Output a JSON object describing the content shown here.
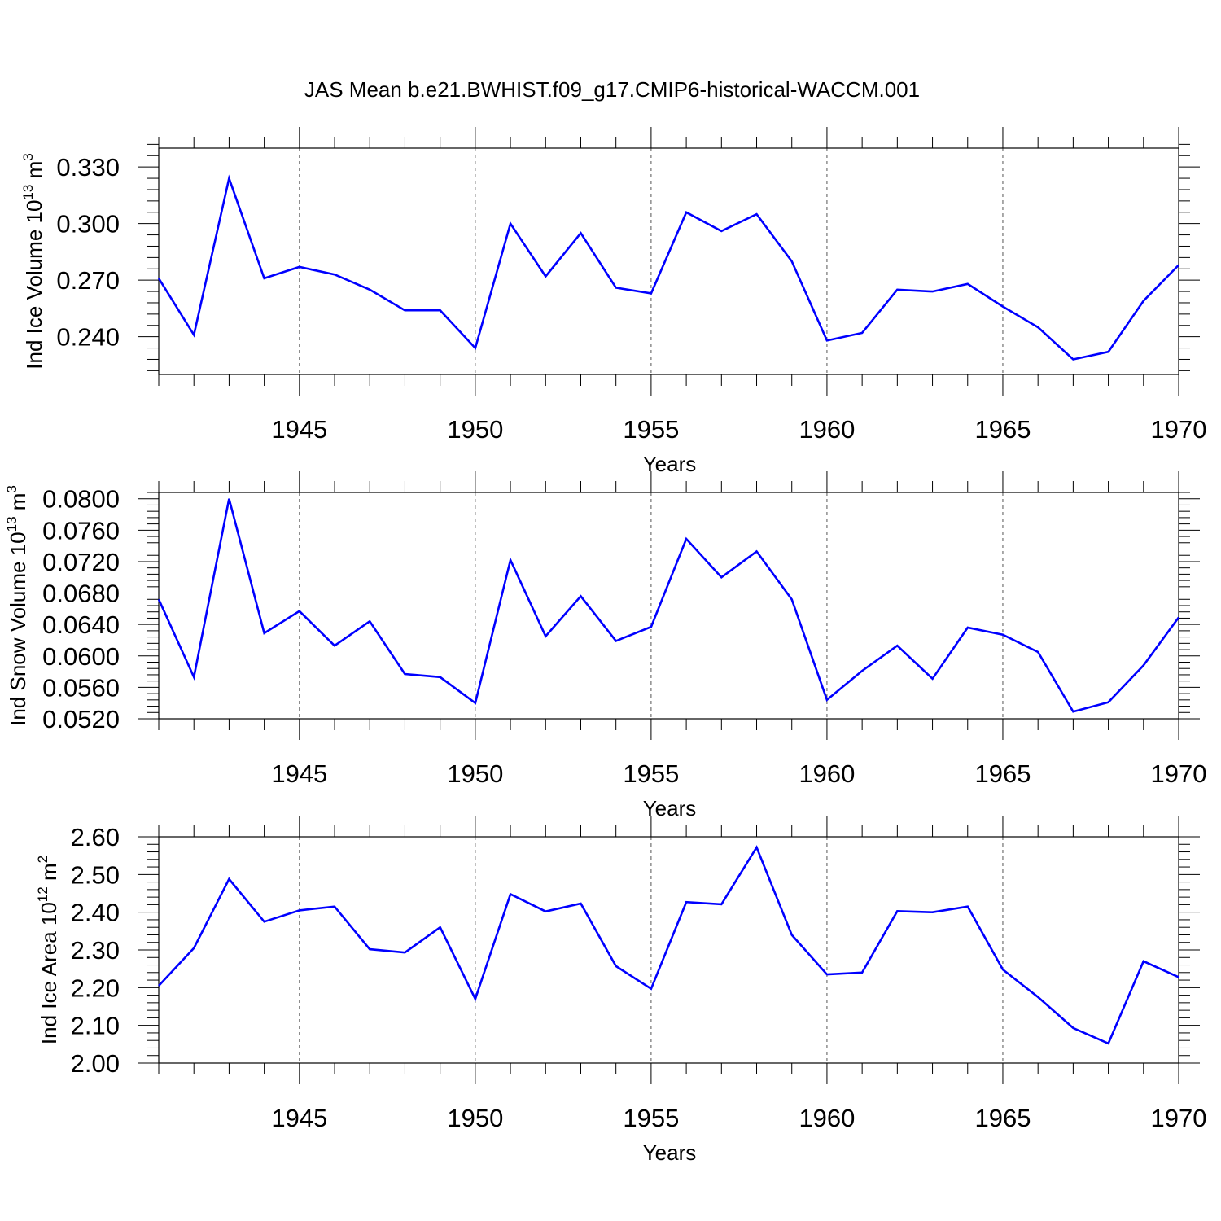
{
  "title": "JAS Mean b.e21.BWHIST.f09_g17.CMIP6-historical-WACCM.001",
  "colors": {
    "line": "#0000ff",
    "axis": "#000000",
    "grid": "#555555"
  },
  "chart_data": [
    {
      "type": "line",
      "ylabel": "Ind Ice Volume 10",
      "ylabel_exp": "13",
      "ylabel_unit": " m",
      "ylabel_unit_exp": "3",
      "xlabel": "Years",
      "xlim": [
        1941,
        1970
      ],
      "ylim": [
        0.22,
        0.34
      ],
      "yticks": [
        0.24,
        0.27,
        0.3,
        0.33
      ],
      "ytick_labels": [
        "0.240",
        "0.270",
        "0.300",
        "0.330"
      ],
      "xticks": [
        1945,
        1950,
        1955,
        1960,
        1965,
        1970
      ],
      "xtick_labels": [
        "1945",
        "1950",
        "1955",
        "1960",
        "1965",
        "1970"
      ],
      "grid": "vertical dashed",
      "x": [
        1941,
        1942,
        1943,
        1944,
        1945,
        1946,
        1947,
        1948,
        1949,
        1950,
        1951,
        1952,
        1953,
        1954,
        1955,
        1956,
        1957,
        1958,
        1959,
        1960,
        1961,
        1962,
        1963,
        1964,
        1965,
        1966,
        1967,
        1968,
        1969,
        1970
      ],
      "y": [
        0.271,
        0.241,
        0.324,
        0.271,
        0.277,
        0.273,
        0.265,
        0.254,
        0.254,
        0.234,
        0.3,
        0.272,
        0.295,
        0.266,
        0.263,
        0.306,
        0.296,
        0.305,
        0.28,
        0.238,
        0.242,
        0.265,
        0.264,
        0.268,
        0.256,
        0.245,
        0.228,
        0.232,
        0.259,
        0.278
      ]
    },
    {
      "type": "line",
      "ylabel": "Ind Snow Volume 10",
      "ylabel_exp": "13",
      "ylabel_unit": " m",
      "ylabel_unit_exp": "3",
      "xlabel": "Years",
      "xlim": [
        1941,
        1970
      ],
      "ylim": [
        0.052,
        0.0808
      ],
      "yticks": [
        0.052,
        0.056,
        0.06,
        0.064,
        0.068,
        0.072,
        0.076,
        0.08
      ],
      "ytick_labels": [
        "0.0520",
        "0.0560",
        "0.0600",
        "0.0640",
        "0.0680",
        "0.0720",
        "0.0760",
        "0.0800"
      ],
      "xticks": [
        1945,
        1950,
        1955,
        1960,
        1965,
        1970
      ],
      "xtick_labels": [
        "1945",
        "1950",
        "1955",
        "1960",
        "1965",
        "1970"
      ],
      "grid": "vertical dashed",
      "x": [
        1941,
        1942,
        1943,
        1944,
        1945,
        1946,
        1947,
        1948,
        1949,
        1950,
        1951,
        1952,
        1953,
        1954,
        1955,
        1956,
        1957,
        1958,
        1959,
        1960,
        1961,
        1962,
        1963,
        1964,
        1965,
        1966,
        1967,
        1968,
        1969,
        1970
      ],
      "y": [
        0.0672,
        0.0573,
        0.08,
        0.0629,
        0.0657,
        0.0613,
        0.0644,
        0.0577,
        0.0573,
        0.054,
        0.0722,
        0.0625,
        0.0676,
        0.0619,
        0.0637,
        0.0749,
        0.07,
        0.0733,
        0.0672,
        0.0544,
        0.0581,
        0.0613,
        0.0571,
        0.0636,
        0.0627,
        0.0605,
        0.0529,
        0.0541,
        0.0588,
        0.0649
      ]
    },
    {
      "type": "line",
      "ylabel": "Ind Ice Area 10",
      "ylabel_exp": "12",
      "ylabel_unit": " m",
      "ylabel_unit_exp": "2",
      "xlabel": "Years",
      "xlim": [
        1941,
        1970
      ],
      "ylim": [
        2.0,
        2.6
      ],
      "yticks": [
        2.0,
        2.1,
        2.2,
        2.3,
        2.4,
        2.5,
        2.6
      ],
      "ytick_labels": [
        "2.00",
        "2.10",
        "2.20",
        "2.30",
        "2.40",
        "2.50",
        "2.60"
      ],
      "xticks": [
        1945,
        1950,
        1955,
        1960,
        1965,
        1970
      ],
      "xtick_labels": [
        "1945",
        "1950",
        "1955",
        "1960",
        "1965",
        "1970"
      ],
      "grid": "vertical dashed",
      "x": [
        1941,
        1942,
        1943,
        1944,
        1945,
        1946,
        1947,
        1948,
        1949,
        1950,
        1951,
        1952,
        1953,
        1954,
        1955,
        1956,
        1957,
        1958,
        1959,
        1960,
        1961,
        1962,
        1963,
        1964,
        1965,
        1966,
        1967,
        1968,
        1969,
        1970
      ],
      "y": [
        2.205,
        2.305,
        2.488,
        2.375,
        2.405,
        2.415,
        2.302,
        2.293,
        2.36,
        2.17,
        2.448,
        2.402,
        2.423,
        2.257,
        2.197,
        2.427,
        2.421,
        2.572,
        2.34,
        2.235,
        2.24,
        2.403,
        2.4,
        2.415,
        2.248,
        2.175,
        2.093,
        2.052,
        2.27,
        2.228
      ]
    }
  ]
}
